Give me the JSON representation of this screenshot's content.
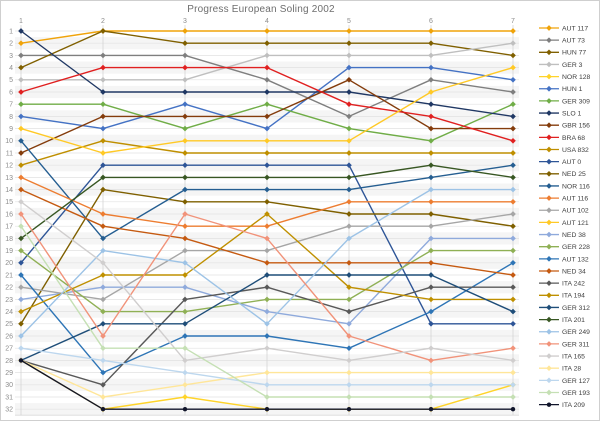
{
  "chart_data": {
    "type": "line",
    "title": "Progress European Soling 2002",
    "xlabel": "",
    "ylabel": "",
    "x": [
      1,
      2,
      3,
      4,
      5,
      6,
      7
    ],
    "x_axis_position": "top",
    "y_axis": {
      "min": 1,
      "max": 32,
      "inverted": true,
      "meaning": "rank position"
    },
    "grid": true,
    "legend_position": "right",
    "series": [
      {
        "name": "AUT 117",
        "color": "#F0A30A",
        "marker": "diamond",
        "values": [
          2,
          1,
          1,
          1,
          1,
          1,
          1
        ]
      },
      {
        "name": "AUT 73",
        "color": "#7F7F7F",
        "marker": "diamond",
        "values": [
          3,
          3,
          3,
          5,
          8,
          5,
          6
        ]
      },
      {
        "name": "HUN 77",
        "color": "#806000",
        "marker": "diamond",
        "values": [
          4,
          1,
          2,
          2,
          2,
          2,
          3
        ]
      },
      {
        "name": "GER 3",
        "color": "#BFBFBF",
        "marker": "diamond",
        "values": [
          5,
          5,
          5,
          3,
          3,
          3,
          2
        ]
      },
      {
        "name": "NOR 128",
        "color": "#FFD42A",
        "marker": "diamond",
        "values": [
          28,
          32,
          31,
          32,
          32,
          32,
          30
        ]
      },
      {
        "name": "HUN 1",
        "color": "#4472C4",
        "marker": "diamond",
        "values": [
          8,
          9,
          7,
          9,
          4,
          4,
          5
        ]
      },
      {
        "name": "GER 309",
        "color": "#70AD47",
        "marker": "diamond",
        "values": [
          7,
          7,
          9,
          7,
          9,
          10,
          7
        ]
      },
      {
        "name": "SLO 1",
        "color": "#203864",
        "marker": "diamond",
        "values": [
          1,
          6,
          6,
          6,
          6,
          7,
          8
        ]
      },
      {
        "name": "GBR 156",
        "color": "#843C0C",
        "marker": "diamond",
        "values": [
          11,
          8,
          8,
          8,
          5,
          9,
          9
        ]
      },
      {
        "name": "BRA 68",
        "color": "#E02020",
        "marker": "diamond",
        "values": [
          6,
          4,
          4,
          4,
          7,
          8,
          10
        ]
      },
      {
        "name": "USA 832",
        "color": "#BF8F00",
        "marker": "diamond",
        "values": [
          12,
          10,
          11,
          11,
          11,
          11,
          11
        ]
      },
      {
        "name": "AUT 0",
        "color": "#2E5597",
        "marker": "diamond",
        "values": [
          20,
          12,
          12,
          12,
          12,
          25,
          25
        ]
      },
      {
        "name": "NED 25",
        "color": "#7F6000",
        "marker": "diamond",
        "values": [
          25,
          14,
          15,
          15,
          16,
          16,
          17
        ]
      },
      {
        "name": "NOR 116",
        "color": "#255E91",
        "marker": "diamond",
        "values": [
          10,
          18,
          14,
          14,
          14,
          13,
          12
        ]
      },
      {
        "name": "AUT 116",
        "color": "#ED7D31",
        "marker": "diamond",
        "values": [
          13,
          16,
          17,
          17,
          15,
          15,
          15
        ]
      },
      {
        "name": "AUT 102",
        "color": "#A6A6A6",
        "marker": "diamond",
        "values": [
          22,
          23,
          19,
          19,
          17,
          17,
          16
        ]
      },
      {
        "name": "AUT 121",
        "color": "#FFC926",
        "marker": "diamond",
        "values": [
          9,
          11,
          10,
          10,
          10,
          6,
          4
        ]
      },
      {
        "name": "NED 38",
        "color": "#8FAADC",
        "marker": "diamond",
        "values": [
          23,
          22,
          22,
          24,
          25,
          18,
          18
        ]
      },
      {
        "name": "GER 228",
        "color": "#8FB055",
        "marker": "diamond",
        "values": [
          19,
          24,
          24,
          23,
          23,
          19,
          19
        ]
      },
      {
        "name": "AUT 132",
        "color": "#2E75B6",
        "marker": "diamond",
        "values": [
          21,
          29,
          26,
          26,
          27,
          24,
          20
        ]
      },
      {
        "name": "NED 34",
        "color": "#C55A11",
        "marker": "diamond",
        "values": [
          14,
          17,
          18,
          20,
          20,
          20,
          21
        ]
      },
      {
        "name": "ITA 242",
        "color": "#595959",
        "marker": "diamond",
        "values": [
          28,
          30,
          23,
          22,
          24,
          22,
          22
        ]
      },
      {
        "name": "ITA 194",
        "color": "#BF9000",
        "marker": "diamond",
        "values": [
          24,
          21,
          21,
          16,
          22,
          23,
          23
        ]
      },
      {
        "name": "GER 312",
        "color": "#1F4E79",
        "marker": "diamond",
        "values": [
          28,
          25,
          25,
          21,
          21,
          21,
          24
        ]
      },
      {
        "name": "ITA 201",
        "color": "#385723",
        "marker": "diamond",
        "values": [
          18,
          13,
          13,
          13,
          13,
          12,
          13
        ]
      },
      {
        "name": "GER 249",
        "color": "#9DC3E6",
        "marker": "diamond",
        "values": [
          26,
          19,
          20,
          25,
          18,
          14,
          14
        ]
      },
      {
        "name": "GER 311",
        "color": "#F1937A",
        "marker": "diamond",
        "values": [
          16,
          26,
          16,
          18,
          26,
          28,
          27
        ]
      },
      {
        "name": "ITA 165",
        "color": "#D0CECE",
        "marker": "diamond",
        "values": [
          15,
          20,
          28,
          27,
          28,
          27,
          28
        ]
      },
      {
        "name": "ITA 28",
        "color": "#FFE699",
        "marker": "diamond",
        "values": [
          28,
          31,
          30,
          29,
          29,
          29,
          29
        ]
      },
      {
        "name": "GER 127",
        "color": "#BDD7EE",
        "marker": "diamond",
        "values": [
          27,
          28,
          29,
          30,
          30,
          30,
          30
        ]
      },
      {
        "name": "GER 193",
        "color": "#C5E0B4",
        "marker": "diamond",
        "values": [
          17,
          27,
          27,
          31,
          31,
          31,
          31
        ]
      },
      {
        "name": "ITA 209",
        "color": "#11152B",
        "marker": "circle",
        "values": [
          28,
          32,
          32,
          32,
          32,
          32,
          32
        ]
      }
    ]
  }
}
